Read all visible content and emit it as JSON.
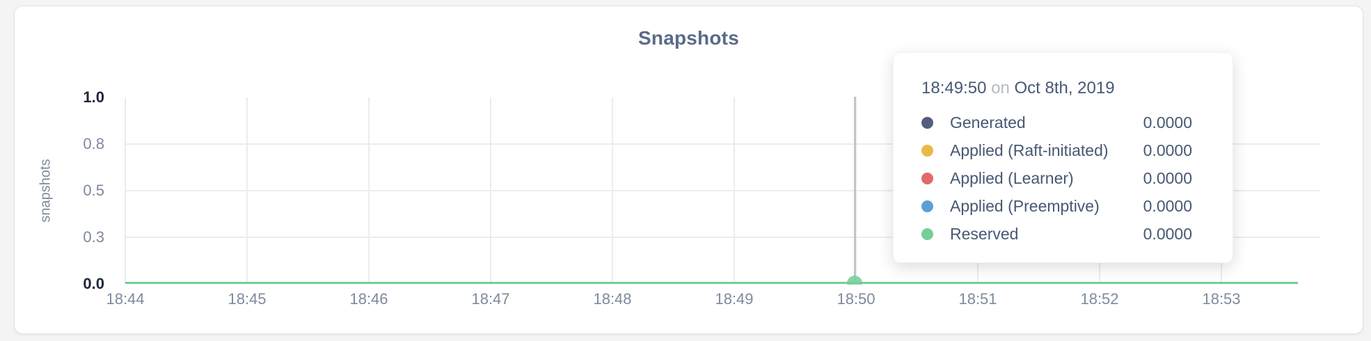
{
  "chart": {
    "title": "Snapshots",
    "y_axis_label": "snapshots"
  },
  "chart_data": {
    "type": "line",
    "title": "Snapshots",
    "xlabel": "",
    "ylabel": "snapshots",
    "ylim": [
      0,
      1.0
    ],
    "grid": true,
    "x_ticks": [
      "18:44",
      "18:45",
      "18:46",
      "18:47",
      "18:48",
      "18:49",
      "18:50",
      "18:51",
      "18:52",
      "18:53"
    ],
    "y_ticks": [
      {
        "label": "0.0",
        "value": 0,
        "emphasis": true
      },
      {
        "label": "0.3",
        "value": 0.25,
        "emphasis": false
      },
      {
        "label": "0.5",
        "value": 0.5,
        "emphasis": false
      },
      {
        "label": "0.8",
        "value": 0.75,
        "emphasis": false
      },
      {
        "label": "1.0",
        "value": 1.0,
        "emphasis": true
      }
    ],
    "series": [
      {
        "name": "Generated",
        "color": "#535d7d",
        "values": [
          0,
          0,
          0,
          0,
          0,
          0,
          0,
          0,
          0,
          0
        ]
      },
      {
        "name": "Applied (Raft-initiated)",
        "color": "#eab946",
        "values": [
          0,
          0,
          0,
          0,
          0,
          0,
          0,
          0,
          0,
          0
        ]
      },
      {
        "name": "Applied (Learner)",
        "color": "#e2696b",
        "values": [
          0,
          0,
          0,
          0,
          0,
          0,
          0,
          0,
          0,
          0
        ]
      },
      {
        "name": "Applied (Preemptive)",
        "color": "#5b9fd4",
        "values": [
          0,
          0,
          0,
          0,
          0,
          0,
          0,
          0,
          0,
          0
        ]
      },
      {
        "name": "Reserved",
        "color": "#74ce98",
        "values": [
          0,
          0,
          0,
          0,
          0,
          0,
          0,
          0,
          0,
          0
        ]
      }
    ],
    "hover": {
      "time": "18:49:50",
      "date": "Oct 8th, 2019",
      "x_tick": "18:50",
      "value": 0
    }
  },
  "tooltip": {
    "time": "18:49:50",
    "on_word": "on",
    "date": "Oct 8th, 2019",
    "rows": [
      {
        "label": "Generated",
        "value": "0.0000",
        "color": "#535d7d"
      },
      {
        "label": "Applied (Raft-initiated)",
        "value": "0.0000",
        "color": "#eab946"
      },
      {
        "label": "Applied (Learner)",
        "value": "0.0000",
        "color": "#e2696b"
      },
      {
        "label": "Applied (Preemptive)",
        "value": "0.0000",
        "color": "#5b9fd4"
      },
      {
        "label": "Reserved",
        "value": "0.0000",
        "color": "#74ce98"
      }
    ]
  },
  "colors": {
    "panel_bg": "#ffffff",
    "page_bg": "#f4f4f5",
    "gridline": "#ececec",
    "hover_line": "#c5c5c5",
    "title_text": "#5a6b88",
    "axis_text": "#7e8a9c",
    "axis_text_emphasis": "#1e2638",
    "tooltip_text": "#475872",
    "tooltip_muted": "#b5bac3"
  }
}
